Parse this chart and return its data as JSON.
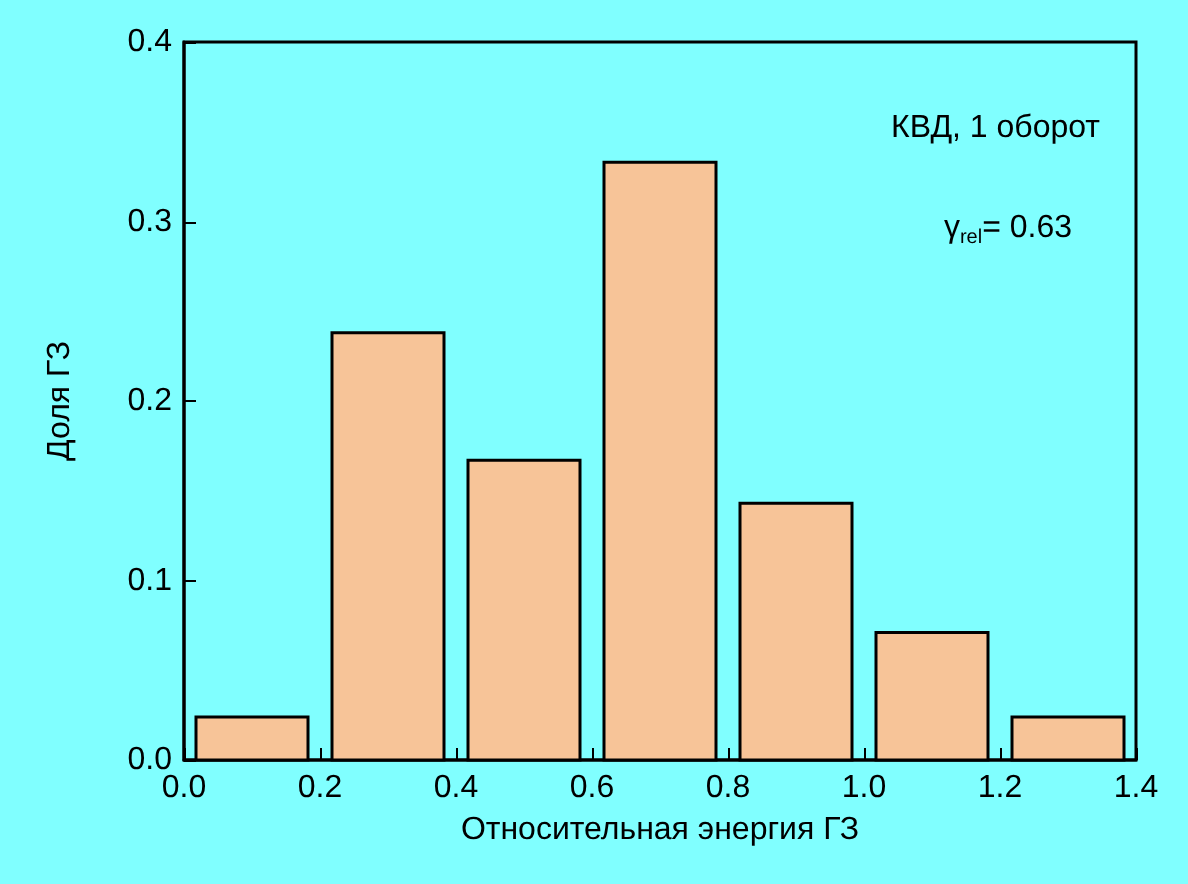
{
  "chart_data": {
    "type": "histogram",
    "xlabel": "Относительная энергия ГЗ",
    "ylabel": "Доля ГЗ",
    "bins": [
      0,
      0.2,
      0.4,
      0.6,
      0.8,
      1.0,
      1.2,
      1.4
    ],
    "values": [
      0.024,
      0.238,
      0.167,
      0.333,
      0.143,
      0.071,
      0.024
    ],
    "color": "#f7c498",
    "xlim": [
      0,
      1.4
    ],
    "xticks": [
      {
        "value": 0,
        "label": "0.0"
      },
      0.2,
      0.4,
      0.6,
      0.8,
      {
        "value": 1,
        "label": "1.0"
      },
      1.2,
      1.4
    ],
    "ylim": [
      0,
      0.4
    ],
    "yticks": [
      {
        "value": 0,
        "label": "0.0"
      },
      0.1,
      0.2,
      0.3,
      0.4
    ],
    "annotations": [
      "КВД, 1 оборот",
      "γ$_{rel}$= 0.63"
    ],
    "grid": false
  }
}
